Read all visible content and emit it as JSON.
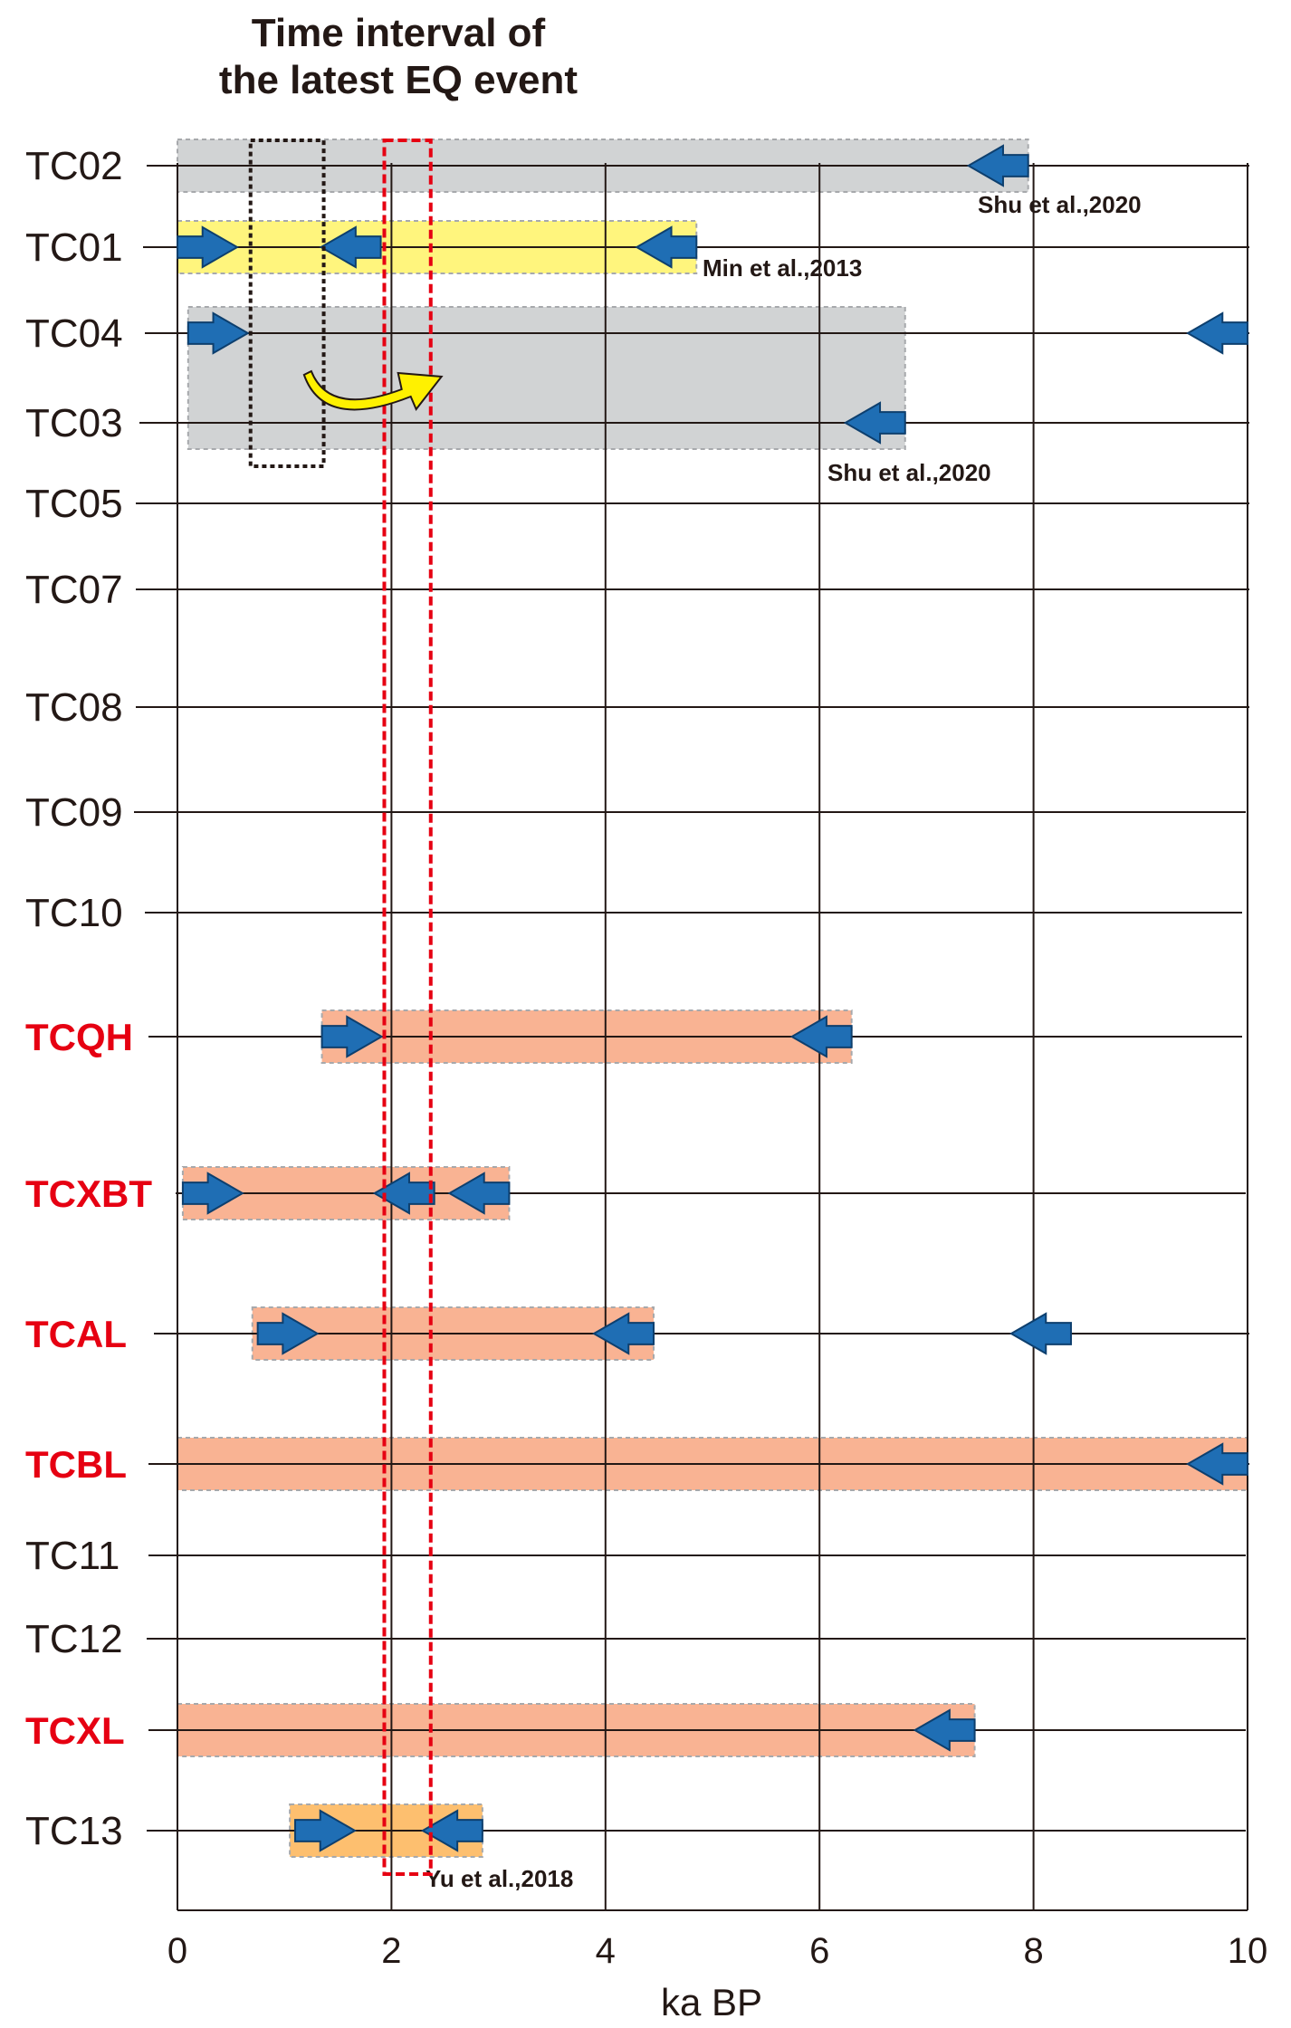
{
  "chart_data": {
    "type": "timeline",
    "title_lines": [
      "Time interval of",
      "the latest EQ event"
    ],
    "xlabel": "ka BP",
    "xlim": [
      0,
      10
    ],
    "xticks": [
      0,
      2,
      4,
      6,
      8,
      10
    ],
    "rows": [
      {
        "label": "TC02",
        "highlight": false
      },
      {
        "label": "TC01",
        "highlight": false
      },
      {
        "label": "TC04",
        "highlight": false
      },
      {
        "label": "TC03",
        "highlight": false
      },
      {
        "label": "TC05",
        "highlight": false
      },
      {
        "label": "TC07",
        "highlight": false
      },
      {
        "label": "TC08",
        "highlight": false
      },
      {
        "label": "TC09",
        "highlight": false
      },
      {
        "label": "TC10",
        "highlight": false
      },
      {
        "label": "TCQH",
        "highlight": true
      },
      {
        "label": "TCXBT",
        "highlight": true
      },
      {
        "label": "TCAL",
        "highlight": true
      },
      {
        "label": "TCBL",
        "highlight": true
      },
      {
        "label": "TC11",
        "highlight": false
      },
      {
        "label": "TC12",
        "highlight": false
      },
      {
        "label": "TCXL",
        "highlight": true
      },
      {
        "label": "TC13",
        "highlight": false
      }
    ],
    "bars": [
      {
        "rows": [
          "TC02"
        ],
        "start": 0,
        "end": 7.95,
        "color": "#d1d3d4"
      },
      {
        "rows": [
          "TC01"
        ],
        "start": 0,
        "end": 4.85,
        "color": "#fff57d"
      },
      {
        "rows": [
          "TC04",
          "TC03"
        ],
        "start": 0.1,
        "end": 6.8,
        "color": "#d1d3d4"
      },
      {
        "rows": [
          "TCQH"
        ],
        "start": 1.35,
        "end": 6.3,
        "color": "#f9b393"
      },
      {
        "rows": [
          "TCXBT"
        ],
        "start": 0.05,
        "end": 3.1,
        "color": "#f9b393"
      },
      {
        "rows": [
          "TCAL"
        ],
        "start": 0.7,
        "end": 4.45,
        "color": "#f9b393"
      },
      {
        "rows": [
          "TCBL"
        ],
        "start": 0,
        "end": 10,
        "color": "#f9b393"
      },
      {
        "rows": [
          "TCXL"
        ],
        "start": 0,
        "end": 7.45,
        "color": "#f9b393"
      },
      {
        "rows": [
          "TC13"
        ],
        "start": 1.05,
        "end": 2.85,
        "color": "#fdbf6f"
      }
    ],
    "arrows": [
      {
        "row": "TC02",
        "value": 7.95,
        "dir": "left"
      },
      {
        "row": "TC01",
        "value": 0,
        "dir": "right"
      },
      {
        "row": "TC01",
        "value": 1.9,
        "dir": "left"
      },
      {
        "row": "TC01",
        "value": 4.85,
        "dir": "left"
      },
      {
        "row": "TC04",
        "value": 0.1,
        "dir": "right"
      },
      {
        "row": "TC04",
        "value": 10,
        "dir": "left"
      },
      {
        "row": "TC03",
        "value": 6.8,
        "dir": "left"
      },
      {
        "row": "TCQH",
        "value": 1.35,
        "dir": "right"
      },
      {
        "row": "TCQH",
        "value": 6.3,
        "dir": "left"
      },
      {
        "row": "TCXBT",
        "value": 0.05,
        "dir": "right"
      },
      {
        "row": "TCXBT",
        "value": 2.4,
        "dir": "left"
      },
      {
        "row": "TCXBT",
        "value": 3.1,
        "dir": "left"
      },
      {
        "row": "TCAL",
        "value": 0.75,
        "dir": "right"
      },
      {
        "row": "TCAL",
        "value": 4.45,
        "dir": "left"
      },
      {
        "row": "TCAL",
        "value": 8.35,
        "dir": "left"
      },
      {
        "row": "TCBL",
        "value": 10,
        "dir": "left"
      },
      {
        "row": "TCXL",
        "value": 7.45,
        "dir": "left"
      },
      {
        "row": "TC13",
        "value": 1.1,
        "dir": "right"
      },
      {
        "row": "TC13",
        "value": 2.85,
        "dir": "left"
      }
    ],
    "annotations": [
      {
        "text": "Shu et al.,2020",
        "row": "TC02"
      },
      {
        "text": "Min et al.,2013",
        "row": "TC01"
      },
      {
        "text": "Shu et al.,2020",
        "row": "TC03"
      },
      {
        "text": "Yu et al.,2018",
        "row": "TC13"
      }
    ],
    "intervals": [
      {
        "start": 0.7,
        "end": 1.35,
        "style": "dotted",
        "color": "#231815",
        "rows": [
          "TC02",
          "TC03"
        ]
      },
      {
        "start": 1.95,
        "end": 2.35,
        "style": "dashed",
        "color": "#e60012",
        "rows": [
          "TC02",
          "TC13"
        ]
      }
    ],
    "shift_arrow": {
      "from": 1.2,
      "to": 2.4,
      "color": "#fff100"
    },
    "colors": {
      "arrow": "#1f6eb4",
      "highlight_label": "#e60012",
      "label": "#231815"
    }
  }
}
